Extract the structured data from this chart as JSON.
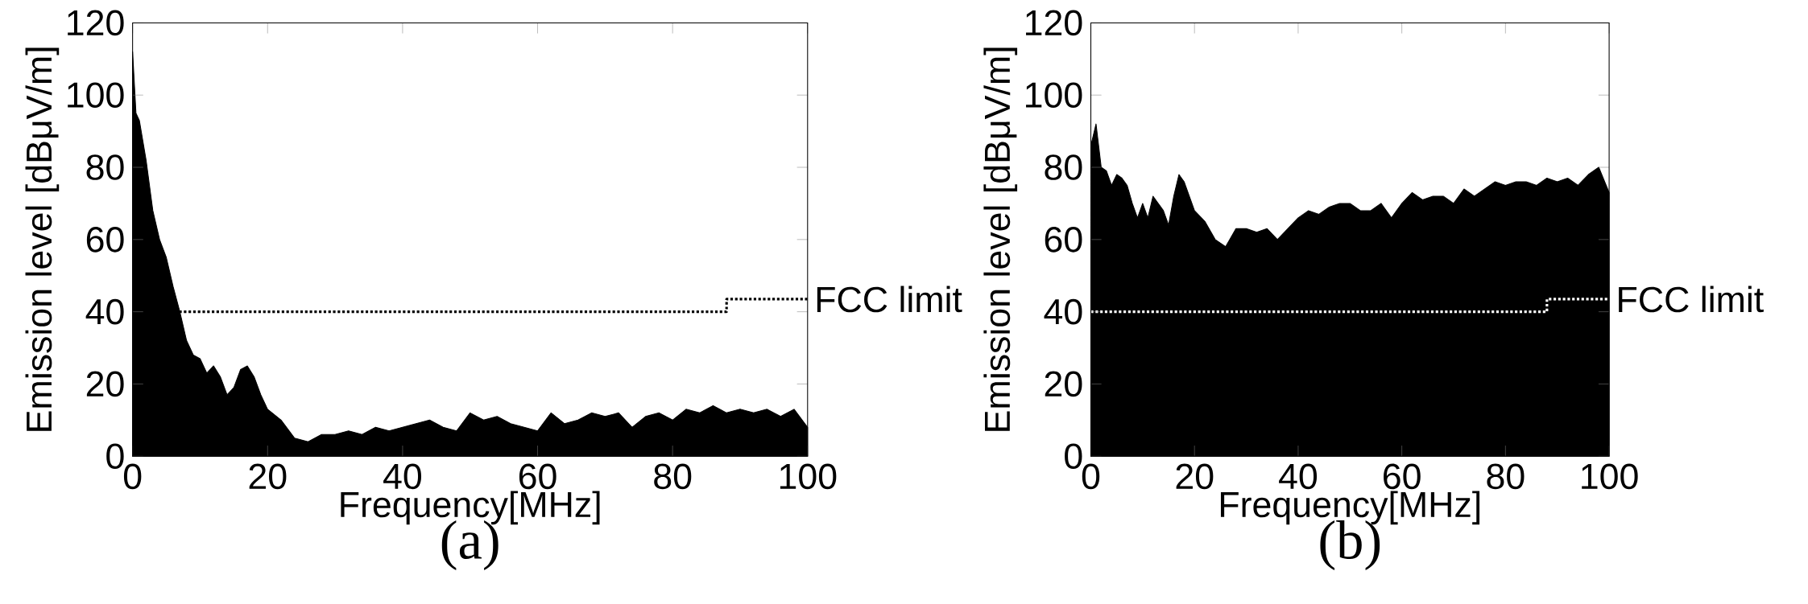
{
  "chart_data": [
    {
      "type": "area",
      "title": "(a)",
      "xlabel": "Frequency[MHz]",
      "ylabel": "Emission level [dBμV/m]",
      "xlim": [
        0,
        100
      ],
      "ylim": [
        0,
        120
      ],
      "xticks": [
        0,
        20,
        40,
        60,
        80,
        100
      ],
      "yticks": [
        0,
        20,
        40,
        60,
        80,
        100,
        120
      ],
      "series": [
        {
          "color": "#000000",
          "x": [
            0,
            0.5,
            1,
            2,
            3,
            4,
            5,
            6,
            7,
            8,
            9,
            10,
            11,
            12,
            13,
            14,
            15,
            16,
            17,
            18,
            19,
            20,
            22,
            24,
            26,
            28,
            30,
            32,
            34,
            36,
            38,
            40,
            42,
            44,
            46,
            48,
            50,
            52,
            54,
            56,
            58,
            60,
            62,
            64,
            66,
            68,
            70,
            72,
            74,
            76,
            78,
            80,
            82,
            84,
            86,
            88,
            90,
            92,
            94,
            96,
            98,
            100
          ],
          "values": [
            112,
            95,
            93,
            82,
            68,
            60,
            55,
            47,
            40,
            32,
            28,
            27,
            23,
            25,
            22,
            17,
            19,
            24,
            25,
            22,
            17,
            13,
            10,
            5,
            4,
            6,
            6,
            7,
            6,
            8,
            7,
            8,
            9,
            10,
            8,
            7,
            12,
            10,
            11,
            9,
            8,
            7,
            12,
            9,
            10,
            12,
            11,
            12,
            8,
            11,
            12,
            10,
            13,
            12,
            14,
            12,
            13,
            12,
            13,
            11,
            13,
            8
          ]
        },
        {
          "type": "line",
          "name": "FCC limit",
          "color": "#000000",
          "line_style": "dotted",
          "x": [
            0,
            88,
            88,
            100
          ],
          "values": [
            40,
            40,
            43.5,
            43.5
          ]
        }
      ]
    },
    {
      "type": "area",
      "title": "(b)",
      "xlabel": "Frequency[MHz]",
      "ylabel": "Emission level [dBμV/m]",
      "xlim": [
        0,
        100
      ],
      "ylim": [
        0,
        120
      ],
      "xticks": [
        0,
        20,
        40,
        60,
        80,
        100
      ],
      "yticks": [
        0,
        20,
        40,
        60,
        80,
        100,
        120
      ],
      "series": [
        {
          "color": "#000000",
          "x": [
            0,
            1,
            2,
            3,
            4,
            5,
            6,
            7,
            8,
            9,
            10,
            11,
            12,
            13,
            14,
            15,
            16,
            17,
            18,
            19,
            20,
            22,
            24,
            26,
            28,
            30,
            32,
            34,
            36,
            38,
            40,
            42,
            44,
            46,
            48,
            50,
            52,
            54,
            56,
            58,
            60,
            62,
            64,
            66,
            68,
            70,
            72,
            74,
            76,
            78,
            80,
            82,
            84,
            86,
            88,
            90,
            92,
            94,
            96,
            98,
            100
          ],
          "values": [
            86,
            92,
            80,
            79,
            75,
            78,
            77,
            75,
            70,
            66,
            70,
            66,
            72,
            70,
            68,
            64,
            72,
            78,
            76,
            72,
            68,
            65,
            60,
            58,
            63,
            63,
            62,
            63,
            60,
            63,
            66,
            68,
            67,
            69,
            70,
            70,
            68,
            68,
            70,
            66,
            70,
            73,
            71,
            72,
            72,
            70,
            74,
            72,
            74,
            76,
            75,
            76,
            76,
            75,
            77,
            76,
            77,
            75,
            78,
            80,
            73
          ]
        },
        {
          "type": "line",
          "name": "FCC limit",
          "color": "#ffffff",
          "line_style": "dotted",
          "x": [
            0,
            88,
            88,
            100
          ],
          "values": [
            40,
            40,
            43.5,
            43.5
          ]
        }
      ]
    }
  ]
}
